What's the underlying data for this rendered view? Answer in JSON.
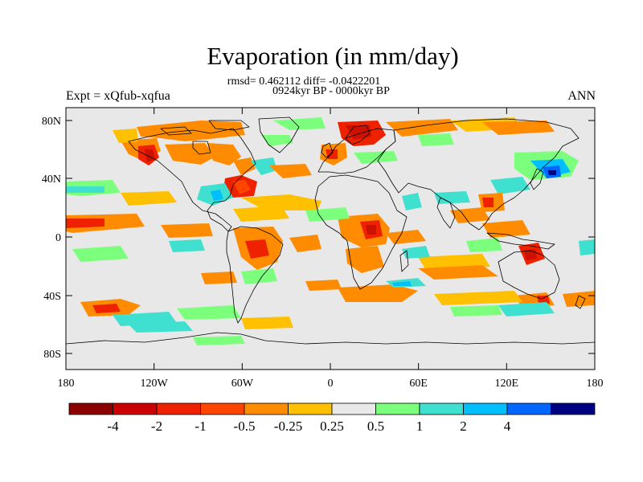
{
  "header": {
    "title": "Evaporation (in mm/day)",
    "stats": "rmsd= 0.462112 diff= -0.0422201",
    "period": "0924kyr BP - 0000kyr BP",
    "experiment": "Expt = xQfub-xqfua",
    "season": "ANN"
  },
  "axes": {
    "lat_labels": [
      "80N",
      "40N",
      "0",
      "40S",
      "80S"
    ],
    "lon_labels": [
      "180",
      "120W",
      "60W",
      "0",
      "60E",
      "120E",
      "180"
    ]
  },
  "colorbar": {
    "labels": [
      "-4",
      "-2",
      "-1",
      "-0.5",
      "-0.25",
      "0.25",
      "0.5",
      "1",
      "2",
      "4"
    ],
    "colors": [
      "#8b0000",
      "#cc0000",
      "#ee2200",
      "#ff4500",
      "#ff8c00",
      "#ffc000",
      "#e8e8e8",
      "#7cff7c",
      "#40e0d0",
      "#00bfff",
      "#0066ff",
      "#000080"
    ]
  },
  "map_patches": {
    "colors": {
      "deep_red": "#cc1100",
      "red": "#ee2200",
      "orange_red": "#ff4500",
      "orange": "#ff8c00",
      "yellow_orange": "#ffc000",
      "green": "#7cff7c",
      "turquoise": "#40e0d0",
      "sky": "#00bfff",
      "blue": "#0066ff",
      "navy": "#000080",
      "neutral": "#e8e8e8"
    }
  }
}
